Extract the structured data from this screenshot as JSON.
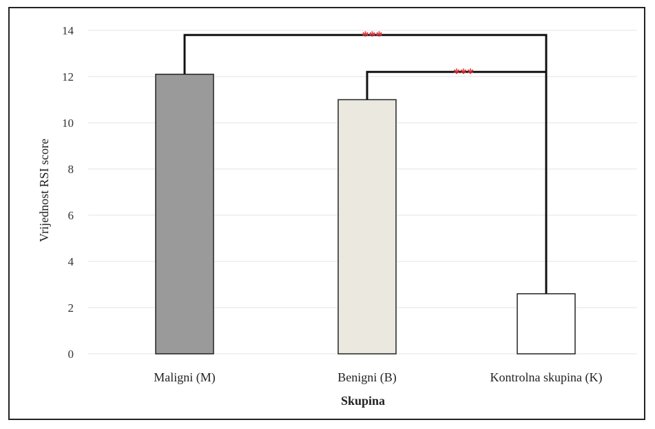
{
  "chart_data": {
    "type": "bar",
    "categories": [
      "Maligni (M)",
      "Benigni (B)",
      "Kontrolna skupina (K)"
    ],
    "values": [
      12.1,
      11.0,
      2.6
    ],
    "xlabel": "Skupina",
    "ylabel": "Vrijednost RSI score",
    "ylim": [
      0,
      14
    ],
    "yticks": [
      0,
      2,
      4,
      6,
      8,
      10,
      12,
      14
    ],
    "grid": true,
    "legend": "none",
    "bar_colors": [
      "#9a9a9a",
      "#ebe9df",
      "#ffffff"
    ],
    "significance": [
      {
        "from": "Maligni (M)",
        "to": "Kontrolna skupina (K)",
        "label": "***",
        "level": 13.8
      },
      {
        "from": "Benigni (B)",
        "to": "Kontrolna skupina (K)",
        "label": "***",
        "level": 12.2
      }
    ],
    "significance_color": "#e8333a"
  }
}
